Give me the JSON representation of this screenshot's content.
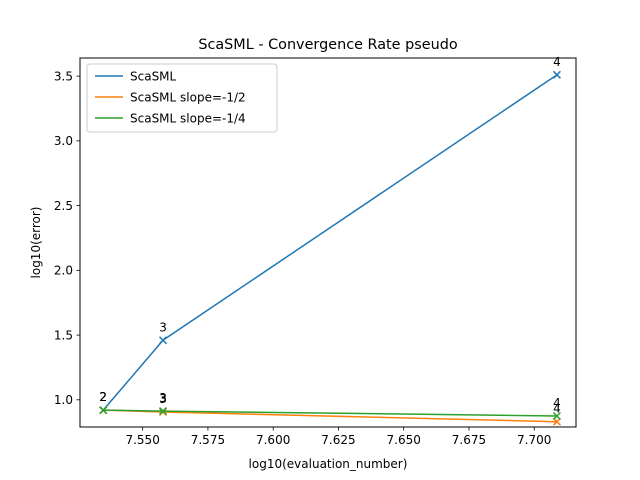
{
  "chart_data": {
    "type": "line",
    "title": "ScaSML - Convergence Rate pseudo",
    "xlabel": "log10(evaluation_number)",
    "ylabel": "log10(error)",
    "xlim": [
      7.526,
      7.716
    ],
    "ylim": [
      0.79,
      3.64
    ],
    "xticks": [
      7.55,
      7.575,
      7.6,
      7.625,
      7.65,
      7.675,
      7.7
    ],
    "xtick_labels": [
      "7.550",
      "7.575",
      "7.600",
      "7.625",
      "7.650",
      "7.675",
      "7.700"
    ],
    "yticks": [
      1.0,
      1.5,
      2.0,
      2.5,
      3.0,
      3.5
    ],
    "ytick_labels": [
      "1.0",
      "1.5",
      "2.0",
      "2.5",
      "3.0",
      "3.5"
    ],
    "grid": false,
    "legend_position": "upper-left",
    "marker": "x",
    "x": [
      7.5349,
      7.5578,
      7.7087
    ],
    "series": [
      {
        "name": "ScaSML",
        "color": "#1f77b4",
        "values": [
          0.92,
          1.46,
          3.51
        ],
        "point_labels": [
          "2",
          "3",
          "4"
        ]
      },
      {
        "name": "ScaSML slope=-1/2",
        "color": "#ff7f0e",
        "values": [
          0.92,
          0.906,
          0.831
        ],
        "point_labels": [
          "2",
          "3",
          "4"
        ]
      },
      {
        "name": "ScaSML slope=-1/4",
        "color": "#2ca02c",
        "values": [
          0.92,
          0.913,
          0.875
        ],
        "point_labels": [
          "2",
          "3",
          "4"
        ]
      }
    ]
  }
}
